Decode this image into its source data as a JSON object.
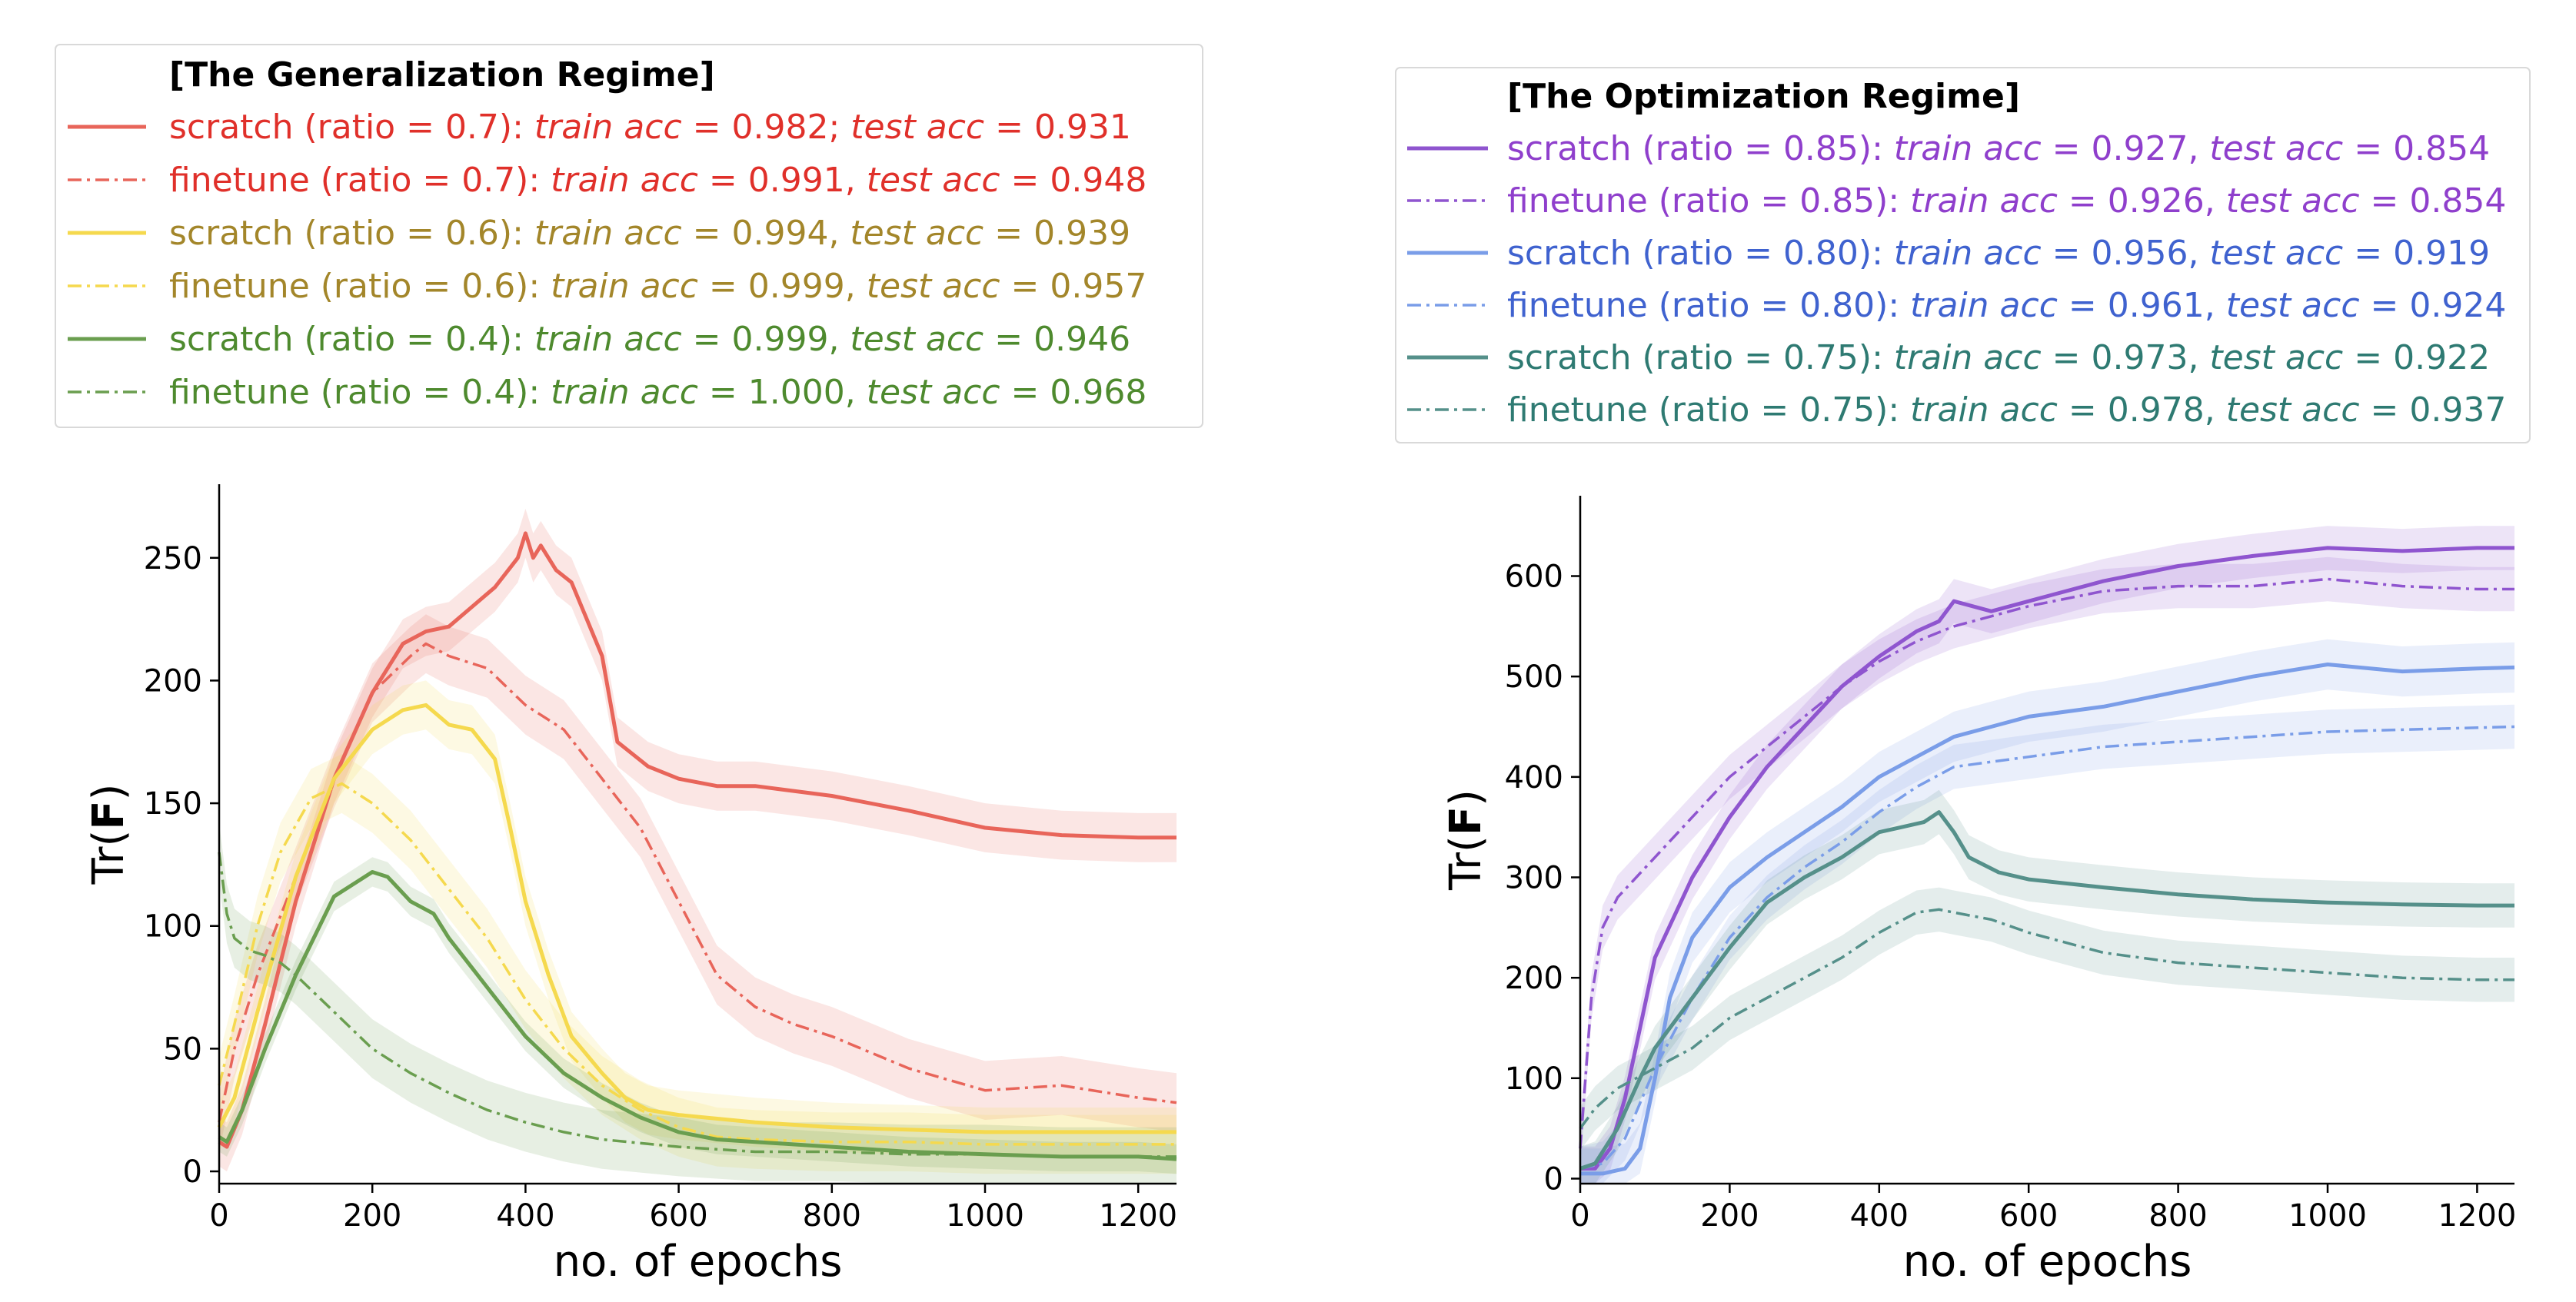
{
  "chart_data": [
    {
      "type": "line",
      "xlabel": "no. of epochs",
      "ylabel": "Tr(F)",
      "xlim": [
        0,
        1250
      ],
      "ylim": [
        -5,
        280
      ],
      "x_ticks": [
        0,
        200,
        400,
        600,
        800,
        1000,
        1200
      ],
      "y_ticks": [
        0,
        50,
        100,
        150,
        200,
        250
      ],
      "legend_title": "[The Generalization Regime]",
      "legend_placement": "top",
      "grid": false,
      "series": [
        {
          "name": "scratch  (ratio = 0.7)",
          "legend": {
            "prefix": "scratch  (ratio = 0.7): ",
            "train_label": "train acc",
            "train_value": " = 0.982; ",
            "test_label": "test acc",
            "test_value": " = 0.931"
          },
          "color": "#e8655a",
          "text_color": "#e0302a",
          "dash": "solid",
          "band": 10,
          "x": [
            0,
            10,
            30,
            60,
            100,
            150,
            200,
            240,
            270,
            300,
            330,
            360,
            390,
            400,
            410,
            420,
            440,
            460,
            480,
            500,
            520,
            560,
            600,
            650,
            700,
            750,
            800,
            900,
            1000,
            1100,
            1200,
            1250
          ],
          "y": [
            12,
            10,
            25,
            60,
            110,
            160,
            195,
            215,
            220,
            222,
            230,
            238,
            250,
            260,
            250,
            255,
            245,
            240,
            225,
            210,
            175,
            165,
            160,
            157,
            157,
            155,
            153,
            147,
            140,
            137,
            136,
            136
          ]
        },
        {
          "name": "finetune (ratio = 0.7)",
          "legend": {
            "prefix": "finetune (ratio = 0.7): ",
            "train_label": "train acc",
            "train_value": " = 0.991, ",
            "test_label": "test acc",
            "test_value": " = 0.948"
          },
          "color": "#e8655a",
          "text_color": "#e0302a",
          "dash": "dashdot",
          "band": 12,
          "x": [
            0,
            20,
            50,
            100,
            150,
            200,
            250,
            270,
            300,
            350,
            400,
            450,
            500,
            550,
            600,
            650,
            700,
            750,
            800,
            900,
            1000,
            1100,
            1200,
            1250
          ],
          "y": [
            20,
            50,
            80,
            120,
            160,
            195,
            210,
            215,
            210,
            205,
            190,
            180,
            160,
            140,
            110,
            80,
            67,
            60,
            55,
            42,
            33,
            35,
            30,
            28
          ]
        },
        {
          "name": "scratch  (ratio = 0.6)",
          "legend": {
            "prefix": "scratch  (ratio = 0.6): ",
            "train_label": "train acc",
            "train_value": " = 0.994, ",
            "test_label": "test acc",
            "test_value": " = 0.939"
          },
          "color": "#f5d94e",
          "text_color": "#a3862a",
          "dash": "solid",
          "band": 10,
          "x": [
            0,
            20,
            50,
            100,
            150,
            200,
            240,
            270,
            300,
            330,
            360,
            380,
            400,
            430,
            460,
            500,
            530,
            560,
            600,
            700,
            800,
            900,
            1000,
            1100,
            1200,
            1250
          ],
          "y": [
            18,
            30,
            65,
            120,
            160,
            180,
            188,
            190,
            182,
            180,
            168,
            140,
            110,
            80,
            55,
            40,
            30,
            25,
            23,
            20,
            18,
            17,
            16,
            16,
            16,
            16
          ]
        },
        {
          "name": "finetune (ratio = 0.6)",
          "legend": {
            "prefix": "finetune (ratio = 0.6): ",
            "train_label": "train acc",
            "train_value": " = 0.999, ",
            "test_label": "test acc",
            "test_value": " = 0.957"
          },
          "color": "#f5d94e",
          "text_color": "#a3862a",
          "dash": "dashdot",
          "band": 12,
          "x": [
            0,
            20,
            50,
            80,
            120,
            160,
            200,
            250,
            300,
            350,
            400,
            450,
            500,
            550,
            600,
            650,
            700,
            800,
            900,
            1000,
            1100,
            1200,
            1250
          ],
          "y": [
            35,
            60,
            100,
            130,
            152,
            158,
            150,
            135,
            115,
            95,
            70,
            50,
            35,
            25,
            18,
            14,
            13,
            12,
            12,
            11,
            11,
            11,
            11
          ]
        },
        {
          "name": "scratch  (ratio = 0.4)",
          "legend": {
            "prefix": "scratch  (ratio = 0.4): ",
            "train_label": "train acc",
            "train_value": " = 0.999, ",
            "test_label": "test acc",
            "test_value": " = 0.946"
          },
          "color": "#6a9e4f",
          "text_color": "#4e8a2e",
          "dash": "solid",
          "band": 6,
          "x": [
            0,
            10,
            30,
            60,
            100,
            150,
            200,
            220,
            250,
            280,
            300,
            350,
            400,
            450,
            500,
            550,
            600,
            650,
            700,
            800,
            900,
            1000,
            1100,
            1200,
            1250
          ],
          "y": [
            14,
            12,
            25,
            50,
            80,
            112,
            122,
            120,
            110,
            105,
            95,
            75,
            55,
            40,
            30,
            22,
            16,
            13,
            12,
            10,
            8,
            7,
            6,
            6,
            5
          ]
        },
        {
          "name": "finetune (ratio = 0.4)",
          "legend": {
            "prefix": "finetune (ratio = 0.4): ",
            "train_label": "train acc",
            "train_value": " = 1.000, ",
            "test_label": "test acc",
            "test_value": " = 0.968"
          },
          "color": "#6a9e4f",
          "text_color": "#4e8a2e",
          "dash": "dashdot",
          "band": 12,
          "x": [
            0,
            10,
            20,
            40,
            60,
            80,
            100,
            150,
            200,
            250,
            300,
            350,
            400,
            450,
            500,
            600,
            700,
            800,
            900,
            1000,
            1100,
            1200,
            1250
          ],
          "y": [
            130,
            105,
            95,
            90,
            88,
            85,
            80,
            65,
            50,
            40,
            32,
            25,
            20,
            16,
            13,
            10,
            8,
            8,
            7,
            7,
            6,
            6,
            6
          ]
        }
      ]
    },
    {
      "type": "line",
      "xlabel": "no. of epochs",
      "ylabel": "Tr(F)",
      "xlim": [
        0,
        1250
      ],
      "ylim": [
        -5,
        680
      ],
      "x_ticks": [
        0,
        200,
        400,
        600,
        800,
        1000,
        1200
      ],
      "y_ticks": [
        0,
        100,
        200,
        300,
        400,
        500,
        600
      ],
      "legend_title": "[The Optimization Regime]",
      "legend_placement": "top",
      "grid": false,
      "series": [
        {
          "name": "scratch  (ratio = 0.85)",
          "legend": {
            "prefix": "scratch  (ratio = 0.85): ",
            "train_label": "train acc",
            "train_value": " = 0.927, ",
            "test_label": "test acc",
            "test_value": " = 0.854"
          },
          "color": "#8f55cf",
          "text_color": "#8f3fcc",
          "dash": "solid",
          "band": 22,
          "x": [
            0,
            20,
            40,
            60,
            80,
            100,
            150,
            200,
            250,
            300,
            350,
            400,
            450,
            480,
            500,
            550,
            600,
            700,
            800,
            900,
            1000,
            1100,
            1200,
            1250
          ],
          "y": [
            10,
            10,
            30,
            80,
            150,
            220,
            300,
            360,
            410,
            450,
            490,
            520,
            545,
            555,
            575,
            565,
            575,
            595,
            610,
            620,
            628,
            625,
            628,
            628
          ]
        },
        {
          "name": "finetune (ratio = 0.85)",
          "legend": {
            "prefix": "finetune (ratio = 0.85): ",
            "train_label": "train acc",
            "train_value": " = 0.926, ",
            "test_label": "test acc",
            "test_value": " = 0.854"
          },
          "color": "#8f55cf",
          "text_color": "#8f3fcc",
          "dash": "dashdot",
          "band": 22,
          "x": [
            0,
            5,
            15,
            30,
            50,
            100,
            150,
            200,
            250,
            300,
            350,
            400,
            450,
            500,
            550,
            600,
            700,
            800,
            900,
            1000,
            1100,
            1200,
            1250
          ],
          "y": [
            30,
            80,
            180,
            250,
            280,
            320,
            360,
            400,
            430,
            460,
            490,
            515,
            535,
            550,
            560,
            570,
            585,
            590,
            590,
            597,
            590,
            587,
            587
          ]
        },
        {
          "name": "scratch  (ratio = 0.80)",
          "legend": {
            "prefix": "scratch  (ratio = 0.80): ",
            "train_label": "train acc",
            "train_value": " = 0.956, ",
            "test_label": "test acc",
            "test_value": " = 0.919"
          },
          "color": "#7a9de8",
          "text_color": "#3f62cf",
          "dash": "solid",
          "band": 25,
          "x": [
            0,
            30,
            60,
            80,
            100,
            120,
            150,
            200,
            250,
            300,
            350,
            400,
            450,
            500,
            550,
            600,
            700,
            800,
            900,
            1000,
            1100,
            1200,
            1250
          ],
          "y": [
            5,
            5,
            10,
            30,
            100,
            180,
            240,
            290,
            320,
            345,
            370,
            400,
            420,
            440,
            450,
            460,
            470,
            485,
            500,
            512,
            505,
            508,
            509
          ]
        },
        {
          "name": "finetune (ratio = 0.80)",
          "legend": {
            "prefix": "finetune (ratio = 0.80): ",
            "train_label": "train acc",
            "train_value": " = 0.961, ",
            "test_label": "test acc",
            "test_value": " = 0.924"
          },
          "color": "#7a9de8",
          "text_color": "#3f62cf",
          "dash": "dashdot",
          "band": 22,
          "x": [
            0,
            30,
            60,
            100,
            150,
            200,
            250,
            300,
            350,
            400,
            450,
            500,
            550,
            600,
            700,
            800,
            900,
            1000,
            1100,
            1200,
            1250
          ],
          "y": [
            10,
            15,
            40,
            110,
            180,
            240,
            280,
            310,
            335,
            365,
            390,
            410,
            415,
            420,
            430,
            435,
            440,
            445,
            447,
            449,
            450
          ]
        },
        {
          "name": "scratch  (ratio = 0.75)",
          "legend": {
            "prefix": "scratch  (ratio = 0.75): ",
            "train_label": "train acc",
            "train_value": " = 0.973, ",
            "test_label": "test acc",
            "test_value": " = 0.922"
          },
          "color": "#55908a",
          "text_color": "#2e7a72",
          "dash": "solid",
          "band": 22,
          "x": [
            0,
            20,
            50,
            80,
            100,
            150,
            200,
            250,
            300,
            350,
            400,
            430,
            460,
            480,
            500,
            520,
            560,
            600,
            700,
            800,
            900,
            1000,
            1100,
            1200,
            1250
          ],
          "y": [
            10,
            15,
            50,
            100,
            130,
            180,
            230,
            275,
            300,
            320,
            345,
            350,
            355,
            365,
            345,
            320,
            305,
            298,
            290,
            283,
            278,
            275,
            273,
            272,
            272
          ]
        },
        {
          "name": "finetune (ratio = 0.75)",
          "legend": {
            "prefix": "finetune (ratio = 0.75): ",
            "train_label": "train acc",
            "train_value": " = 0.978, ",
            "test_label": "test acc",
            "test_value": " = 0.937"
          },
          "color": "#55908a",
          "text_color": "#2e7a72",
          "dash": "dashdot",
          "band": 22,
          "x": [
            0,
            20,
            50,
            100,
            150,
            200,
            250,
            300,
            350,
            400,
            450,
            480,
            500,
            550,
            600,
            700,
            800,
            900,
            1000,
            1100,
            1200,
            1250
          ],
          "y": [
            50,
            70,
            90,
            110,
            130,
            160,
            180,
            200,
            220,
            245,
            265,
            268,
            265,
            258,
            245,
            225,
            215,
            210,
            205,
            200,
            198,
            198
          ]
        }
      ]
    }
  ]
}
